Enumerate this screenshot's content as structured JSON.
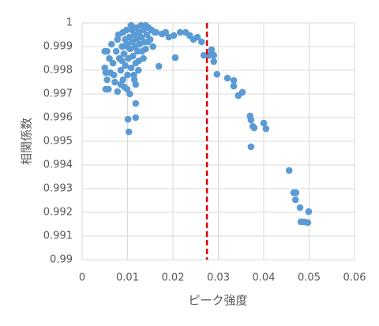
{
  "chart_data": {
    "type": "scatter",
    "xlabel": "ピーク強度",
    "ylabel": "相関係数",
    "xlim": [
      0,
      0.06
    ],
    "xticks": [
      0,
      0.01,
      0.02,
      0.03,
      0.04,
      0.05,
      0.06
    ],
    "ylim": [
      0.99,
      1
    ],
    "yticks": [
      0.99,
      0.991,
      0.992,
      0.993,
      0.994,
      0.995,
      0.996,
      0.997,
      0.998,
      0.999,
      1
    ],
    "grid": true,
    "color": "#5b9bd5",
    "vline": {
      "x": 0.0275,
      "color": "#e00000"
    },
    "x": [
      0.005,
      0.0055,
      0.005,
      0.0052,
      0.0055,
      0.0052,
      0.0058,
      0.006,
      0.0065,
      0.0068,
      0.007,
      0.0072,
      0.0075,
      0.0078,
      0.008,
      0.0082,
      0.0085,
      0.0088,
      0.009,
      0.009,
      0.0092,
      0.0095,
      0.0095,
      0.0098,
      0.01,
      0.01,
      0.0102,
      0.0104,
      0.0105,
      0.0106,
      0.0108,
      0.011,
      0.011,
      0.0112,
      0.0114,
      0.0115,
      0.0117,
      0.0118,
      0.012,
      0.012,
      0.0122,
      0.0124,
      0.0125,
      0.0127,
      0.013,
      0.013,
      0.0132,
      0.0135,
      0.0137,
      0.014,
      0.014,
      0.0143,
      0.0146,
      0.015,
      0.0153,
      0.0156,
      0.016,
      0.0093,
      0.0085,
      0.0078,
      0.0115,
      0.0125,
      0.0108,
      0.0098,
      0.0088,
      0.0135,
      0.0145,
      0.0062,
      0.0118,
      0.0103,
      0.0101,
      0.0118,
      0.0118,
      0.0099,
      0.0163,
      0.0169,
      0.0176,
      0.0184,
      0.0191,
      0.0202,
      0.0205,
      0.0216,
      0.0228,
      0.0237,
      0.0245,
      0.0254,
      0.0263,
      0.0268,
      0.028,
      0.0285,
      0.029,
      0.029,
      0.0297,
      0.032,
      0.0334,
      0.0334,
      0.0344,
      0.0353,
      0.037,
      0.0372,
      0.0372,
      0.0376,
      0.0379,
      0.04,
      0.0405,
      0.0456,
      0.0466,
      0.0471,
      0.047,
      0.048,
      0.0482,
      0.0489,
      0.0497,
      0.0499
    ],
    "y": [
      0.9988,
      0.9988,
      0.9981,
      0.9979,
      0.9976,
      0.9972,
      0.9972,
      0.9985,
      0.9991,
      0.9983,
      0.9978,
      0.9975,
      0.9988,
      0.9993,
      0.9995,
      0.9985,
      0.998,
      0.999,
      0.9996,
      0.9976,
      0.9987,
      0.9993,
      0.9982,
      0.9997,
      0.999,
      0.9978,
      0.9985,
      0.9994,
      0.997,
      0.9989,
      0.9981,
      0.9997,
      0.9992,
      0.9986,
      0.9978,
      0.9995,
      0.999,
      0.9983,
      0.9998,
      0.9993,
      0.9988,
      0.998,
      0.9996,
      0.9991,
      0.9999,
      0.9994,
      0.9988,
      0.9997,
      0.9992,
      0.9999,
      0.9989,
      0.9995,
      0.9998,
      0.9993,
      0.9997,
      0.999,
      0.9996,
      0.9973,
      0.9974,
      0.9971,
      0.9976,
      0.9984,
      0.9999,
      0.9991,
      0.9984,
      0.9985,
      0.9992,
      0.9979,
      0.9974,
      0.9954,
      0.99593,
      0.996,
      0.9966,
      0.9972,
      0.9996,
      0.99817,
      0.99953,
      0.9996,
      0.9994,
      0.99947,
      0.99853,
      0.9996,
      0.9996,
      0.99947,
      0.9993,
      0.9994,
      0.9992,
      0.99863,
      0.99863,
      0.99887,
      0.99863,
      0.99837,
      0.99783,
      0.99767,
      0.99757,
      0.99733,
      0.99693,
      0.99707,
      0.99607,
      0.9959,
      0.99477,
      0.99563,
      0.99557,
      0.99577,
      0.99553,
      0.99377,
      0.99283,
      0.99283,
      0.99253,
      0.9922,
      0.9916,
      0.9916,
      0.99157,
      0.99203
    ]
  }
}
